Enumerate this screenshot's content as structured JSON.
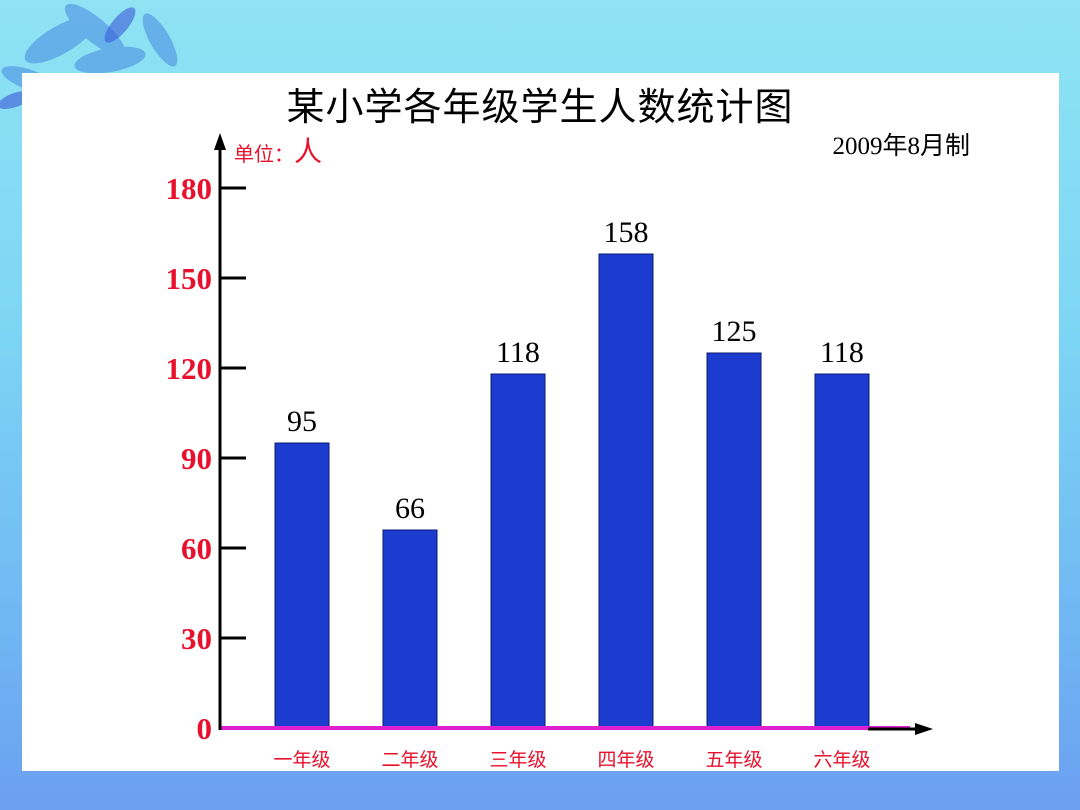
{
  "chart_data": {
    "type": "bar",
    "title": "某小学各年级学生人数统计图",
    "subtitle": "2009年8月制",
    "unit_label": "单位：",
    "unit_value": "人",
    "categories": [
      "一年级",
      "二年级",
      "三年级",
      "四年级",
      "五年级",
      "六年级"
    ],
    "values": [
      95,
      66,
      118,
      158,
      125,
      118
    ],
    "value_labels": [
      "95",
      "66",
      "118",
      "158",
      "125",
      "118"
    ],
    "yticks": [
      0,
      30,
      60,
      90,
      120,
      150,
      180
    ],
    "ytick_labels": [
      "0",
      "30",
      "60",
      "90",
      "120",
      "150",
      "180"
    ],
    "ylim": [
      0,
      180
    ],
    "grid": false,
    "colors": {
      "bar": "#1c3cd0",
      "axis": "#000000",
      "baseline": "#e020d0",
      "tick_label": "#e8112d",
      "category_label": "#e8112d"
    }
  }
}
